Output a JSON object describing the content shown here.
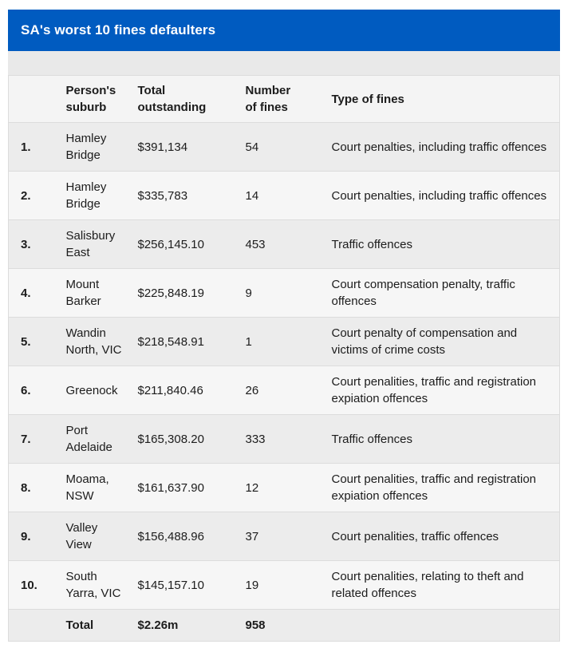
{
  "title_bar": {
    "title": "SA's worst 10 fines defaulters"
  },
  "chart_data": {
    "type": "table",
    "title": "SA's worst 10 fines defaulters",
    "columns": [
      "",
      "Person's suburb",
      "Total outstanding",
      "Number of fines",
      "Type of fines"
    ],
    "rows": [
      {
        "rank": "1.",
        "suburb": "Hamley Bridge",
        "total_outstanding": "$391,134",
        "number_of_fines": "54",
        "type_of_fines": "Court penalties, including traffic offences"
      },
      {
        "rank": "2.",
        "suburb": "Hamley Bridge",
        "total_outstanding": "$335,783",
        "number_of_fines": "14",
        "type_of_fines": "Court penalties, including traffic offences"
      },
      {
        "rank": "3.",
        "suburb": "Salisbury East",
        "total_outstanding": "$256,145.10",
        "number_of_fines": "453",
        "type_of_fines": "Traffic offences"
      },
      {
        "rank": "4.",
        "suburb": "Mount Barker",
        "total_outstanding": "$225,848.19",
        "number_of_fines": "9",
        "type_of_fines": "Court compensation penalty, traffic offences"
      },
      {
        "rank": "5.",
        "suburb": "Wandin North, VIC",
        "total_outstanding": "$218,548.91",
        "number_of_fines": "1",
        "type_of_fines": "Court penalty of compensation and victims of crime costs"
      },
      {
        "rank": "6.",
        "suburb": "Greenock",
        "total_outstanding": "$211,840.46",
        "number_of_fines": "26",
        "type_of_fines": "Court penalities, traffic and registration expiation offences"
      },
      {
        "rank": "7.",
        "suburb": "Port Adelaide",
        "total_outstanding": "$165,308.20",
        "number_of_fines": "333",
        "type_of_fines": "Traffic offences"
      },
      {
        "rank": "8.",
        "suburb": "Moama, NSW",
        "total_outstanding": "$161,637.90",
        "number_of_fines": "12",
        "type_of_fines": "Court penalities, traffic and registration expiation offences"
      },
      {
        "rank": "9.",
        "suburb": "Valley View",
        "total_outstanding": "$156,488.96",
        "number_of_fines": "37",
        "type_of_fines": "Court penalities, traffic offences"
      },
      {
        "rank": "10.",
        "suburb": "South Yarra, VIC",
        "total_outstanding": "$145,157.10",
        "number_of_fines": "19",
        "type_of_fines": "Court penalities, relating to theft and related offences"
      }
    ],
    "total_row": {
      "rank": "",
      "suburb": "Total",
      "total_outstanding": "$2.26m",
      "number_of_fines": "958",
      "type_of_fines": ""
    }
  },
  "colors": {
    "title_bar_blue": "#005bc0",
    "title_text": "#ffffff",
    "body_text": "#1c1c1c",
    "row_stripe_dark": "#ececec",
    "row_stripe_light": "#f6f6f6",
    "header_row_bg": "#f4f4f4",
    "widget_gap_bg": "#e9e9e9",
    "border": "#dcdcdc"
  }
}
